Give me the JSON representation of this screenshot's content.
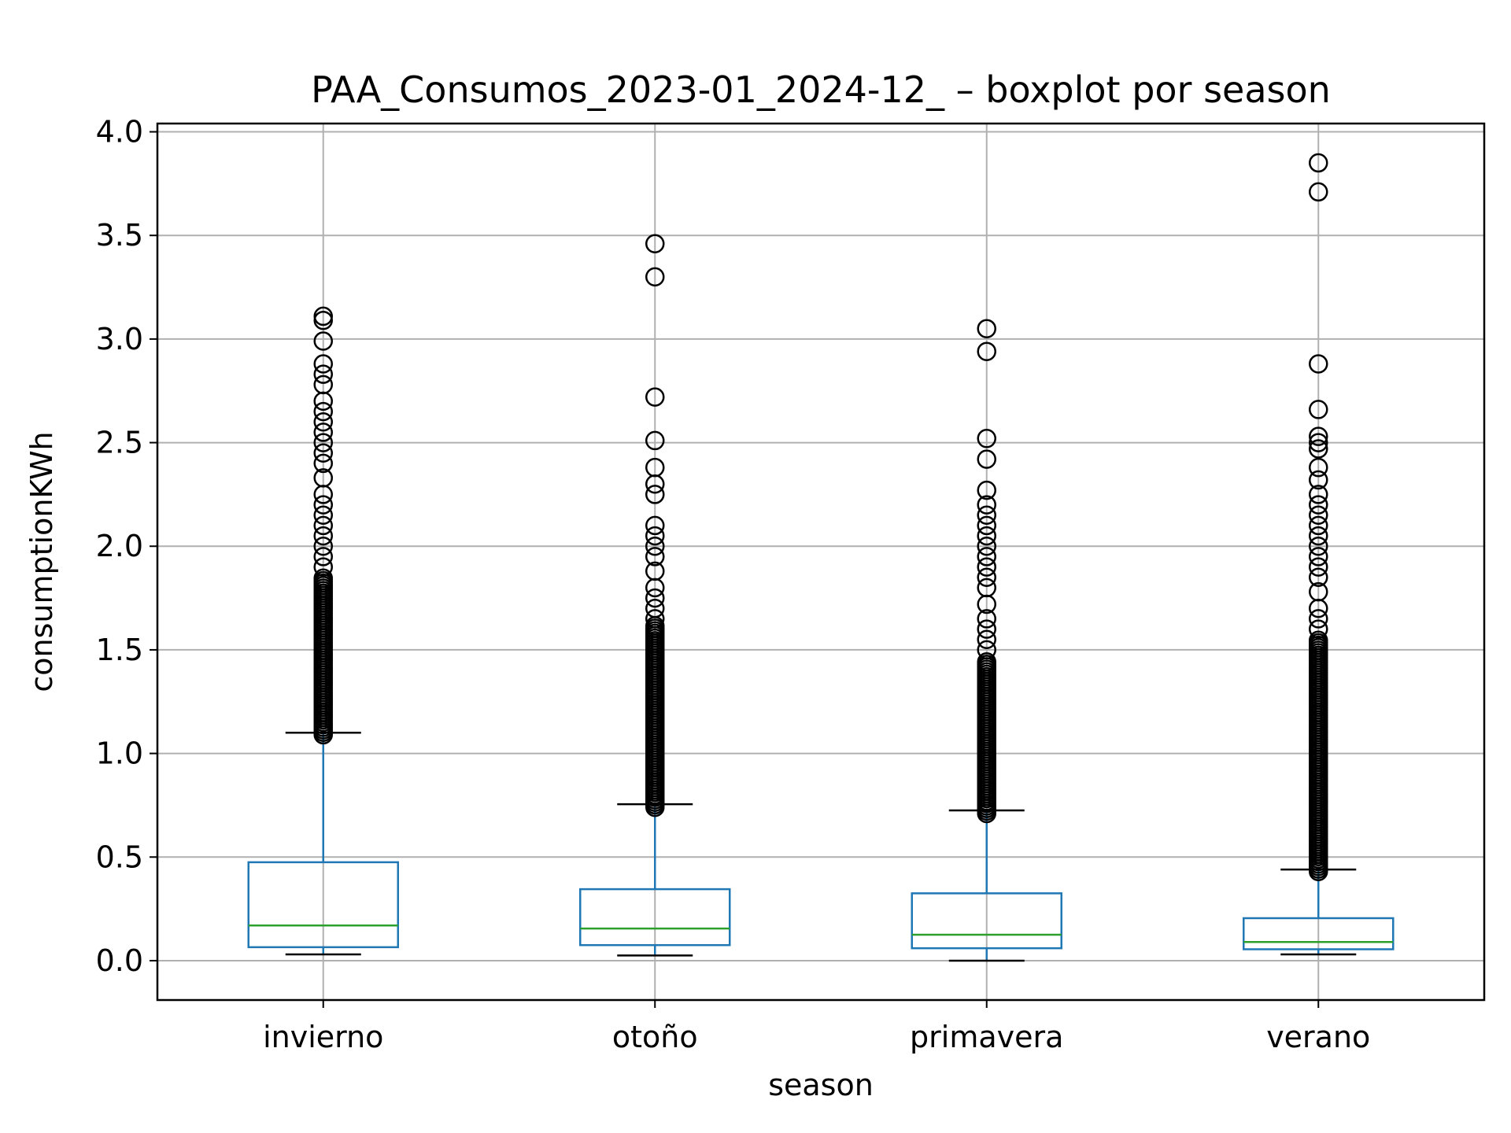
{
  "chart_data": {
    "type": "box",
    "title": "PAA_Consumos_2023-01_2024-12_ – boxplot por season",
    "xlabel": "season",
    "ylabel": "consumptionKWh",
    "categories": [
      "invierno",
      "otoño",
      "primavera",
      "verano"
    ],
    "ylim": [
      -0.19,
      4.04
    ],
    "yticks": [
      0.0,
      0.5,
      1.0,
      1.5,
      2.0,
      2.5,
      3.0,
      3.5,
      4.0
    ],
    "ytick_labels": [
      "0.0",
      "0.5",
      "1.0",
      "1.5",
      "2.0",
      "2.5",
      "3.0",
      "3.5",
      "4.0"
    ],
    "grid": true,
    "series": [
      {
        "category": "invierno",
        "whisker_low": 0.03,
        "q1": 0.065,
        "median": 0.17,
        "q3": 0.475,
        "whisker_high": 1.1,
        "outliers_dense": [
          1.09,
          1.85
        ],
        "outliers": [
          1.9,
          1.95,
          2.0,
          2.05,
          2.1,
          2.15,
          2.2,
          2.25,
          2.33,
          2.4,
          2.45,
          2.5,
          2.55,
          2.6,
          2.65,
          2.7,
          2.78,
          2.83,
          2.88,
          2.99,
          3.09,
          3.11
        ]
      },
      {
        "category": "otoño",
        "whisker_low": 0.025,
        "q1": 0.075,
        "median": 0.155,
        "q3": 0.345,
        "whisker_high": 0.755,
        "outliers_dense": [
          0.74,
          1.62
        ],
        "outliers": [
          1.65,
          1.7,
          1.75,
          1.8,
          1.88,
          1.95,
          2.0,
          2.05,
          2.1,
          2.25,
          2.3,
          2.38,
          2.51,
          2.72,
          3.3,
          3.46
        ]
      },
      {
        "category": "primavera",
        "whisker_low": 0.0,
        "q1": 0.06,
        "median": 0.125,
        "q3": 0.325,
        "whisker_high": 0.725,
        "outliers_dense": [
          0.71,
          1.45
        ],
        "outliers": [
          1.5,
          1.55,
          1.6,
          1.65,
          1.72,
          1.8,
          1.85,
          1.9,
          1.95,
          2.0,
          2.05,
          2.1,
          2.15,
          2.2,
          2.27,
          2.42,
          2.52,
          2.94,
          3.05
        ]
      },
      {
        "category": "verano",
        "whisker_low": 0.03,
        "q1": 0.055,
        "median": 0.09,
        "q3": 0.205,
        "whisker_high": 0.44,
        "outliers_dense": [
          0.43,
          1.55
        ],
        "outliers": [
          1.6,
          1.65,
          1.7,
          1.78,
          1.85,
          1.9,
          1.95,
          2.0,
          2.05,
          2.1,
          2.15,
          2.2,
          2.25,
          2.32,
          2.38,
          2.47,
          2.5,
          2.53,
          2.66,
          2.88,
          3.71,
          3.85
        ]
      }
    ],
    "colors": {
      "box": "#1f77b4",
      "median": "#2ca02c",
      "whisker_cap": "#000000",
      "outlier": "#000000",
      "grid": "#b0b0b0",
      "frame": "#000000"
    }
  }
}
